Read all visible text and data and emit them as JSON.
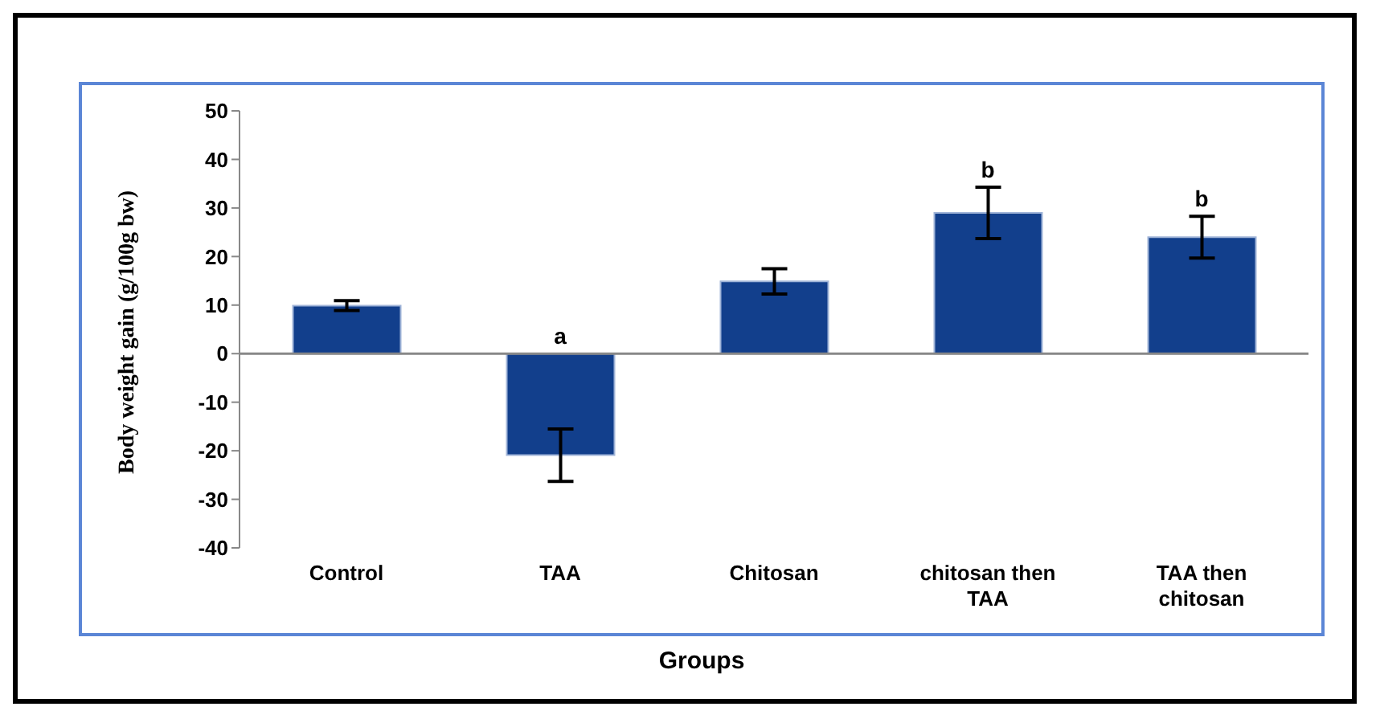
{
  "chart_data": {
    "type": "bar",
    "xlabel": "Groups",
    "ylabel": "Body weight gain (g/100g bw)",
    "categories": [
      "Control",
      "TAA",
      "Chitosan",
      "chitosan then TAA",
      "TAA then chitosan"
    ],
    "values": [
      9.9,
      -20.9,
      14.9,
      29,
      24
    ],
    "errors": [
      1,
      5.4,
      2.6,
      5.3,
      4.3
    ],
    "color": "#123f8c",
    "ylim": [
      -40,
      50
    ],
    "yticks": [
      -40,
      -30,
      -20,
      -10,
      0,
      10,
      20,
      30,
      40,
      50
    ],
    "value_labels": [
      null,
      "a",
      null,
      "b",
      "b"
    ]
  }
}
